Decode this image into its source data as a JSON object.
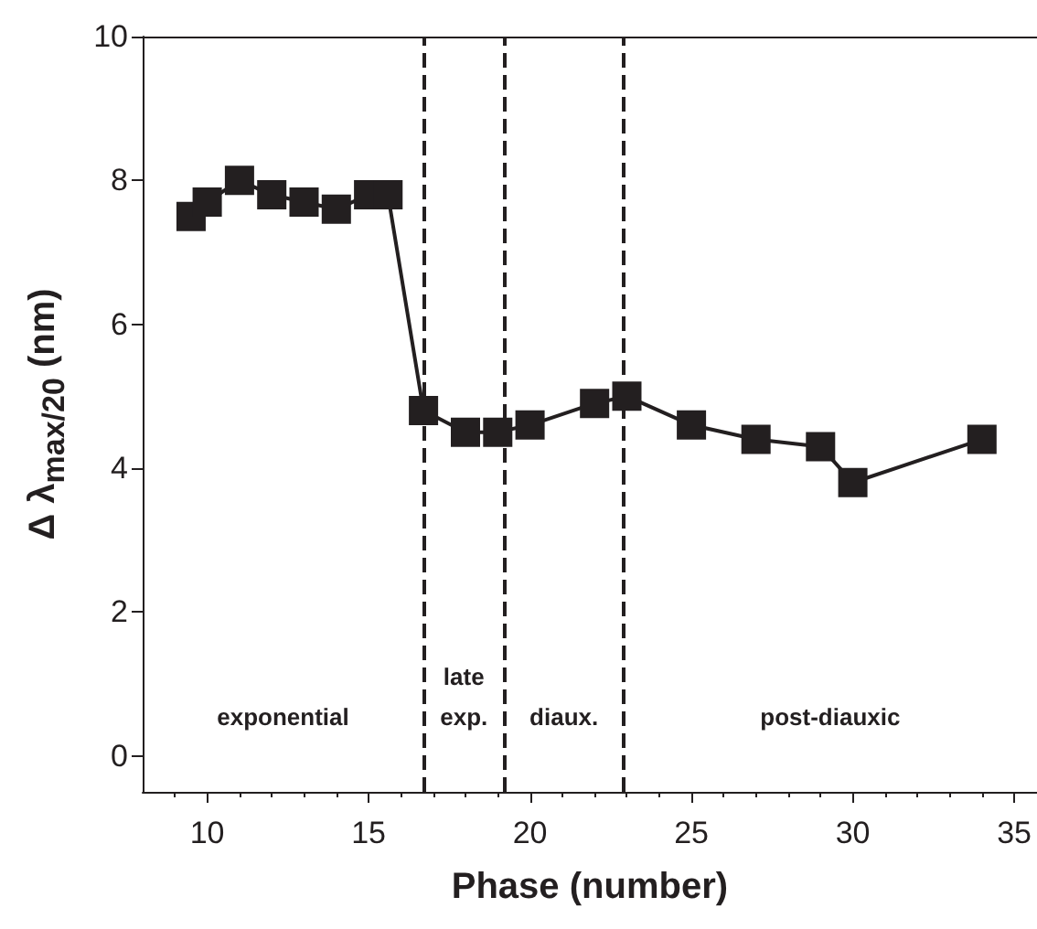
{
  "chart_data": {
    "type": "line",
    "xlabel": "Phase (number)",
    "ylabel": "Δ λ$_{max/20}$ (nm)",
    "x": [
      9.5,
      10,
      11,
      12,
      13,
      14,
      15,
      15.6,
      16.7,
      18,
      19,
      20,
      22,
      23,
      25,
      27,
      29,
      30,
      34
    ],
    "series": [
      {
        "color": "#231f20",
        "values": [
          7.5,
          7.7,
          8.0,
          7.8,
          7.7,
          7.6,
          7.8,
          7.8,
          4.8,
          4.5,
          4.5,
          4.6,
          4.9,
          5.0,
          4.6,
          4.4,
          4.3,
          3.8,
          4.4
        ]
      }
    ],
    "xlim": [
      8,
      35.7
    ],
    "xticks": [
      10,
      15,
      20,
      25,
      30,
      35
    ],
    "ylim": [
      -0.5,
      10
    ],
    "yticks": [
      0,
      2,
      4,
      6,
      8,
      10
    ],
    "marker": "square",
    "line_style": "solid",
    "grid": false,
    "ref_lines": [
      {
        "axis": "x",
        "value": 16.7,
        "line_style": "dashed",
        "color": "#231f20"
      },
      {
        "axis": "x",
        "value": 19.2,
        "line_style": "dashed",
        "color": "#231f20"
      },
      {
        "axis": "x",
        "value": 22.9,
        "line_style": "dashed",
        "color": "#231f20"
      }
    ],
    "annotations": [
      "exponential",
      "late\nexp.",
      "diaux.",
      "post-diauxic"
    ]
  }
}
